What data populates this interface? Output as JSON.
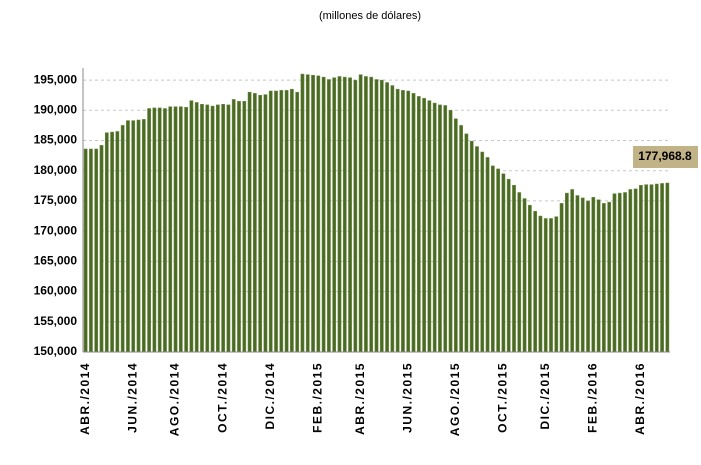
{
  "chart_data": {
    "type": "bar",
    "subtitle": "(millones de dólares)",
    "categories": [
      "ABR./2014",
      null,
      null,
      null,
      null,
      null,
      null,
      null,
      null,
      "JUN./2014",
      null,
      null,
      null,
      null,
      null,
      null,
      null,
      "AGO./2014",
      null,
      null,
      null,
      null,
      null,
      null,
      null,
      null,
      "OCT./2014",
      null,
      null,
      null,
      null,
      null,
      null,
      null,
      null,
      "DIC./2014",
      null,
      null,
      null,
      null,
      null,
      null,
      null,
      null,
      "FEB./2015",
      null,
      null,
      null,
      null,
      null,
      null,
      null,
      "ABR./2015",
      null,
      null,
      null,
      null,
      null,
      null,
      null,
      null,
      "JUN./2015",
      null,
      null,
      null,
      null,
      null,
      null,
      null,
      null,
      "AGO./2015",
      null,
      null,
      null,
      null,
      null,
      null,
      null,
      null,
      "OCT./2015",
      null,
      null,
      null,
      null,
      null,
      null,
      null,
      "DIC./2015",
      null,
      null,
      null,
      null,
      null,
      null,
      null,
      null,
      "FEB./2016",
      null,
      null,
      null,
      null,
      null,
      null,
      null,
      null,
      "ABR./2016",
      null,
      null,
      null,
      null,
      null
    ],
    "values": [
      183600,
      183600,
      183600,
      184200,
      186300,
      186400,
      186500,
      187500,
      188300,
      188300,
      188400,
      188500,
      190300,
      190400,
      190400,
      190300,
      190600,
      190600,
      190600,
      190500,
      191600,
      191300,
      191000,
      190900,
      190700,
      190900,
      191000,
      190900,
      191800,
      191500,
      191500,
      193000,
      192800,
      192500,
      192600,
      193200,
      193200,
      193300,
      193300,
      193500,
      193000,
      196000,
      195900,
      195800,
      195700,
      195500,
      195100,
      195400,
      195600,
      195500,
      195400,
      195000,
      195900,
      195600,
      195500,
      195100,
      195000,
      194600,
      194100,
      193500,
      193300,
      193200,
      192800,
      192300,
      192000,
      191600,
      191200,
      190900,
      190800,
      190000,
      188600,
      187500,
      186100,
      184900,
      184000,
      183100,
      182200,
      180800,
      180300,
      179500,
      178600,
      177600,
      176400,
      175400,
      174300,
      173300,
      172500,
      172100,
      172100,
      172400,
      174600,
      176300,
      176900,
      175900,
      175500,
      175000,
      175600,
      175200,
      174600,
      174800,
      176200,
      176300,
      176400,
      176900,
      177000,
      177600,
      177700,
      177700,
      177800,
      177900,
      177968.8
    ],
    "value_labels": [
      null,
      null,
      null,
      null,
      null,
      null,
      null,
      null,
      null,
      null,
      null,
      null,
      null,
      null,
      null,
      null,
      null,
      null,
      null,
      null,
      null,
      null,
      null,
      null,
      null,
      null,
      null,
      null,
      null,
      null,
      null,
      null,
      null,
      null,
      null,
      null,
      null,
      null,
      null,
      null,
      null,
      null,
      null,
      null,
      null,
      null,
      null,
      null,
      null,
      null,
      null,
      null,
      null,
      null,
      null,
      null,
      null,
      null,
      null,
      null,
      null,
      null,
      null,
      null,
      null,
      null,
      null,
      null,
      null,
      null,
      null,
      null,
      null,
      null,
      null,
      null,
      null,
      null,
      null,
      null,
      null,
      null,
      null,
      null,
      null,
      null,
      null,
      null,
      null,
      null,
      null,
      null,
      null,
      null,
      null,
      null,
      null,
      null,
      null,
      null,
      null,
      null,
      null,
      null,
      null,
      null,
      null,
      null,
      null,
      null,
      "177,968.8"
    ],
    "color": "#4b6b24",
    "ylim": [
      150000,
      197000
    ],
    "yticks": [
      {
        "value": 150000,
        "label": "150,000"
      },
      {
        "value": 155000,
        "label": "155,000"
      },
      {
        "value": 160000,
        "label": "160,000"
      },
      {
        "value": 165000,
        "label": "165,000"
      },
      {
        "value": 170000,
        "label": "170,000"
      },
      {
        "value": 175000,
        "label": "175,000"
      },
      {
        "value": 180000,
        "label": "180,000"
      },
      {
        "value": 185000,
        "label": "185,000"
      },
      {
        "value": 190000,
        "label": "190,000"
      },
      {
        "value": 195000,
        "label": "195,000"
      }
    ],
    "grid": true
  }
}
